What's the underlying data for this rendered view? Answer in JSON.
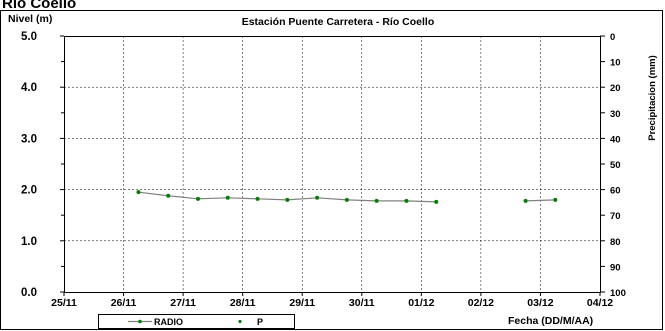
{
  "page": {
    "top_text": "Rio Coello"
  },
  "chart_data": {
    "type": "line",
    "title": "Estación Puente Carretera - Río Coello",
    "ylabel": "Nivel (m)",
    "y2label": "Precipitacion (mm)",
    "xlabel": "Fecha (DD/M/AA)",
    "ylim": [
      0,
      5
    ],
    "y2lim": [
      0,
      100
    ],
    "y2_inverted": true,
    "xlim": [
      "2023-11-25",
      "2023-12-04"
    ],
    "x_tick_labels": [
      "25/11",
      "26/11",
      "27/11",
      "28/11",
      "29/11",
      "30/11",
      "01/12",
      "02/12",
      "03/12",
      "04/12"
    ],
    "y_tick_labels": [
      "0.0",
      "1.0",
      "2.0",
      "3.0",
      "4.0",
      "5.0"
    ],
    "y2_tick_labels": [
      "0",
      "10",
      "20",
      "30",
      "40",
      "50",
      "60",
      "70",
      "80",
      "90",
      "100"
    ],
    "grid": true,
    "legend_position": "bottom-left",
    "series": [
      {
        "name": "RADIO",
        "color": "#808080",
        "marker_color": "#008000",
        "segments": [
          [
            {
              "x": "26/11 06:00",
              "y": 1.95
            },
            {
              "x": "26/11 18:00",
              "y": 1.88
            },
            {
              "x": "27/11 06:00",
              "y": 1.82
            },
            {
              "x": "27/11 18:00",
              "y": 1.84
            },
            {
              "x": "28/11 06:00",
              "y": 1.82
            },
            {
              "x": "28/11 18:00",
              "y": 1.8
            },
            {
              "x": "29/11 06:00",
              "y": 1.84
            },
            {
              "x": "29/11 18:00",
              "y": 1.8
            },
            {
              "x": "30/11 06:00",
              "y": 1.78
            },
            {
              "x": "30/11 18:00",
              "y": 1.78
            },
            {
              "x": "01/12 06:00",
              "y": 1.76
            }
          ],
          [
            {
              "x": "02/12 18:00",
              "y": 1.78
            },
            {
              "x": "03/12 06:00",
              "y": 1.8
            }
          ]
        ]
      },
      {
        "name": "P",
        "color": "#008000",
        "axis": "right",
        "points": []
      }
    ]
  }
}
